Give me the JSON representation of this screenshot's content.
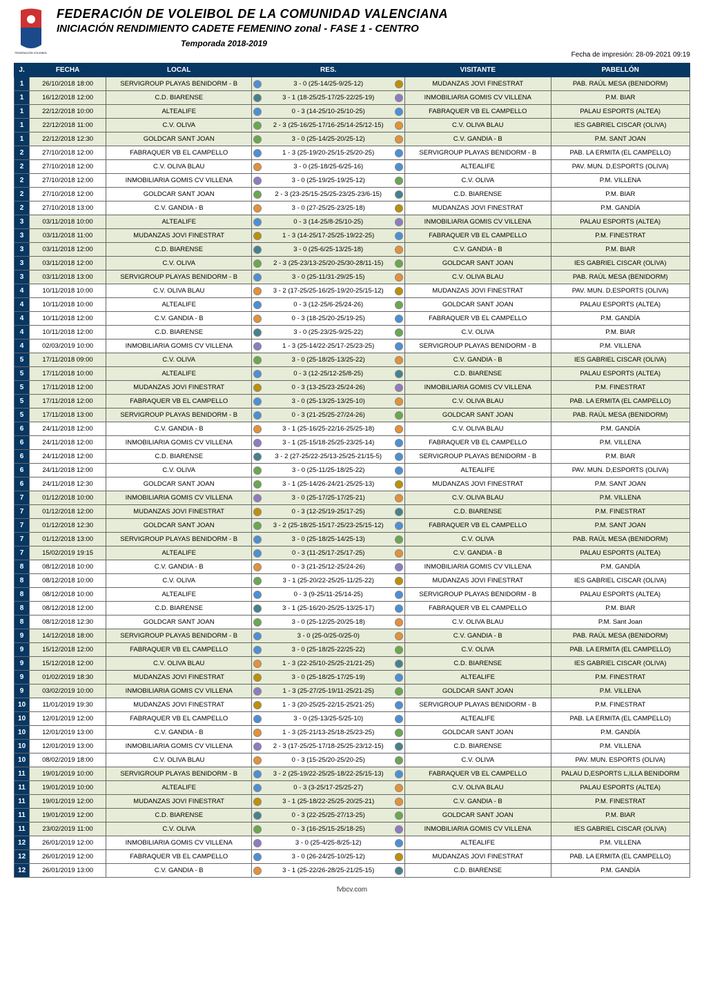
{
  "header": {
    "title_main": "FEDERACIÓN DE VOLEIBOL DE LA COMUNIDAD VALENCIANA",
    "title_sub": "INICIACIÓN RENDIMIENTO CADETE FEMENINO zonal - FASE 1 - CENTRO",
    "season": "Temporada 2018-2019",
    "print_date": "Fecha de impresión: 28-09-2021 09:19",
    "logo_text_top": "FEDERACIÓN VOLEIBOL",
    "logo_colors": {
      "red": "#cc3333",
      "blue": "#1a4a8a",
      "green": "#2a7a3a",
      "yellow": "#e6b800"
    }
  },
  "columns": {
    "j": "J.",
    "fecha": "FECHA",
    "local": "LOCAL",
    "res": "RES.",
    "visitante": "VISITANTE",
    "pabellon": "PABELLÓN"
  },
  "colors": {
    "header_bg": "#073763",
    "header_fg": "#ffffff",
    "row_even": "#e6ecd7",
    "row_odd": "#ffffff",
    "border": "#666666"
  },
  "badge_palette": [
    "#f4c430",
    "#4a90d9",
    "#6aa84f",
    "#cc3333",
    "#e69138",
    "#8e7cc3",
    "#45818e",
    "#bf9000"
  ],
  "footer": "fvbcv.com",
  "rows": [
    {
      "j": 1,
      "fecha": "26/10/2018 18:00",
      "local": "SERVIGROUP PLAYAS BENIDORM - B",
      "res": "3 - 0  (25-14/25-9/25-12)",
      "visit": "MUDANZAS JOVI FINESTRAT",
      "pab": "PAB. RAÚL MESA (BENIDORM)"
    },
    {
      "j": 1,
      "fecha": "16/12/2018 12:00",
      "local": "C.D. BIARENSE",
      "res": "3 - 1  (18-25/25-17/25-22/25-19)",
      "visit": "INMOBILIARIA GOMIS CV VILLENA",
      "pab": "P.M. BIAR"
    },
    {
      "j": 1,
      "fecha": "22/12/2018 10:00",
      "local": "ALTEALIFE",
      "res": "0 - 3  (14-25/10-25/10-25)",
      "visit": "FABRAQUER VB EL CAMPELLO",
      "pab": "PALAU ESPORTS (ALTEA)"
    },
    {
      "j": 1,
      "fecha": "22/12/2018 11:00",
      "local": "C.V. OLIVA",
      "res": "2 - 3  (25-16/25-17/16-25/14-25/12-15)",
      "visit": "C.V. OLIVA BLAU",
      "pab": "IES GABRIEL CISCAR (OLIVA)"
    },
    {
      "j": 1,
      "fecha": "22/12/2018 12:30",
      "local": "GOLDCAR SANT JOAN",
      "res": "3 - 0  (25-14/25-20/25-12)",
      "visit": "C.V. GANDIA - B",
      "pab": "P.M. SANT JOAN"
    },
    {
      "j": 2,
      "fecha": "27/10/2018 12:00",
      "local": "FABRAQUER VB EL CAMPELLO",
      "res": "1 - 3  (25-19/20-25/15-25/20-25)",
      "visit": "SERVIGROUP PLAYAS BENIDORM - B",
      "pab": "PAB. LA ERMITA (EL CAMPELLO)"
    },
    {
      "j": 2,
      "fecha": "27/10/2018 12:00",
      "local": "C.V. OLIVA BLAU",
      "res": "3 - 0  (25-18/25-6/25-16)",
      "visit": "ALTEALIFE",
      "pab": "PAV. MUN. D,ESPORTS (OLIVA)"
    },
    {
      "j": 2,
      "fecha": "27/10/2018 12:00",
      "local": "INMOBILIARIA GOMIS CV VILLENA",
      "res": "3 - 0  (25-19/25-19/25-12)",
      "visit": "C.V. OLIVA",
      "pab": "P.M. VILLENA"
    },
    {
      "j": 2,
      "fecha": "27/10/2018 12:00",
      "local": "GOLDCAR SANT JOAN",
      "res": "2 - 3  (23-25/15-25/25-23/25-23/6-15)",
      "visit": "C.D. BIARENSE",
      "pab": "P.M. BIAR"
    },
    {
      "j": 2,
      "fecha": "27/10/2018 13:00",
      "local": "C.V. GANDIA - B",
      "res": "3 - 0  (27-25/25-23/25-18)",
      "visit": "MUDANZAS JOVI FINESTRAT",
      "pab": "P.M. GANDÍA"
    },
    {
      "j": 3,
      "fecha": "03/11/2018 10:00",
      "local": "ALTEALIFE",
      "res": "0 - 3  (14-25/8-25/10-25)",
      "visit": "INMOBILIARIA GOMIS CV VILLENA",
      "pab": "PALAU ESPORTS (ALTEA)"
    },
    {
      "j": 3,
      "fecha": "03/11/2018 11:00",
      "local": "MUDANZAS JOVI FINESTRAT",
      "res": "1 - 3  (14-25/17-25/25-19/22-25)",
      "visit": "FABRAQUER VB EL CAMPELLO",
      "pab": "P.M. FINESTRAT"
    },
    {
      "j": 3,
      "fecha": "03/11/2018 12:00",
      "local": "C.D. BIARENSE",
      "res": "3 - 0  (25-6/25-13/25-18)",
      "visit": "C.V. GANDIA - B",
      "pab": "P.M. BIAR"
    },
    {
      "j": 3,
      "fecha": "03/11/2018 12:00",
      "local": "C.V. OLIVA",
      "res": "2 - 3  (25-23/13-25/20-25/30-28/11-15)",
      "visit": "GOLDCAR SANT JOAN",
      "pab": "IES GABRIEL CISCAR (OLIVA)"
    },
    {
      "j": 3,
      "fecha": "03/11/2018 13:00",
      "local": "SERVIGROUP PLAYAS BENIDORM - B",
      "res": "3 - 0  (25-11/31-29/25-15)",
      "visit": "C.V. OLIVA BLAU",
      "pab": "PAB. RAÚL MESA (BENIDORM)"
    },
    {
      "j": 4,
      "fecha": "10/11/2018 10:00",
      "local": "C.V. OLIVA BLAU",
      "res": "3 - 2  (17-25/25-16/25-19/20-25/15-12)",
      "visit": "MUDANZAS JOVI FINESTRAT",
      "pab": "PAV. MUN. D,ESPORTS (OLIVA)"
    },
    {
      "j": 4,
      "fecha": "10/11/2018 10:00",
      "local": "ALTEALIFE",
      "res": "0 - 3  (12-25/6-25/24-26)",
      "visit": "GOLDCAR SANT JOAN",
      "pab": "PALAU ESPORTS (ALTEA)"
    },
    {
      "j": 4,
      "fecha": "10/11/2018 12:00",
      "local": "C.V. GANDIA - B",
      "res": "0 - 3  (18-25/20-25/19-25)",
      "visit": "FABRAQUER VB EL CAMPELLO",
      "pab": "P.M. GANDÍA"
    },
    {
      "j": 4,
      "fecha": "10/11/2018 12:00",
      "local": "C.D. BIARENSE",
      "res": "3 - 0  (25-23/25-9/25-22)",
      "visit": "C.V. OLIVA",
      "pab": "P.M. BIAR"
    },
    {
      "j": 4,
      "fecha": "02/03/2019 10:00",
      "local": "INMOBILIARIA GOMIS CV VILLENA",
      "res": "1 - 3  (25-14/22-25/17-25/23-25)",
      "visit": "SERVIGROUP PLAYAS BENIDORM - B",
      "pab": "P.M. VILLENA"
    },
    {
      "j": 5,
      "fecha": "17/11/2018 09:00",
      "local": "C.V. OLIVA",
      "res": "3 - 0  (25-18/25-13/25-22)",
      "visit": "C.V. GANDIA - B",
      "pab": "IES GABRIEL CISCAR (OLIVA)"
    },
    {
      "j": 5,
      "fecha": "17/11/2018 10:00",
      "local": "ALTEALIFE",
      "res": "0 - 3  (12-25/12-25/8-25)",
      "visit": "C.D. BIARENSE",
      "pab": "PALAU ESPORTS (ALTEA)"
    },
    {
      "j": 5,
      "fecha": "17/11/2018 12:00",
      "local": "MUDANZAS JOVI FINESTRAT",
      "res": "0 - 3  (13-25/23-25/24-26)",
      "visit": "INMOBILIARIA GOMIS CV VILLENA",
      "pab": "P.M. FINESTRAT"
    },
    {
      "j": 5,
      "fecha": "17/11/2018 12:00",
      "local": "FABRAQUER VB EL CAMPELLO",
      "res": "3 - 0  (25-13/25-13/25-10)",
      "visit": "C.V. OLIVA BLAU",
      "pab": "PAB. LA ERMITA (EL CAMPELLO)"
    },
    {
      "j": 5,
      "fecha": "17/11/2018 13:00",
      "local": "SERVIGROUP PLAYAS BENIDORM - B",
      "res": "0 - 3  (21-25/25-27/24-26)",
      "visit": "GOLDCAR SANT JOAN",
      "pab": "PAB. RAÚL MESA (BENIDORM)"
    },
    {
      "j": 6,
      "fecha": "24/11/2018 12:00",
      "local": "C.V. GANDIA - B",
      "res": "3 - 1  (25-16/25-22/16-25/25-18)",
      "visit": "C.V. OLIVA BLAU",
      "pab": "P.M. GANDÍA"
    },
    {
      "j": 6,
      "fecha": "24/11/2018 12:00",
      "local": "INMOBILIARIA GOMIS CV VILLENA",
      "res": "3 - 1  (25-15/18-25/25-23/25-14)",
      "visit": "FABRAQUER VB EL CAMPELLO",
      "pab": "P.M. VILLENA"
    },
    {
      "j": 6,
      "fecha": "24/11/2018 12:00",
      "local": "C.D. BIARENSE",
      "res": "3 - 2  (27-25/22-25/13-25/25-21/15-5)",
      "visit": "SERVIGROUP PLAYAS BENIDORM - B",
      "pab": "P.M. BIAR"
    },
    {
      "j": 6,
      "fecha": "24/11/2018 12:00",
      "local": "C.V. OLIVA",
      "res": "3 - 0  (25-11/25-18/25-22)",
      "visit": "ALTEALIFE",
      "pab": "PAV. MUN. D,ESPORTS (OLIVA)"
    },
    {
      "j": 6,
      "fecha": "24/11/2018 12:30",
      "local": "GOLDCAR SANT JOAN",
      "res": "3 - 1  (25-14/26-24/21-25/25-13)",
      "visit": "MUDANZAS JOVI FINESTRAT",
      "pab": "P.M. SANT JOAN"
    },
    {
      "j": 7,
      "fecha": "01/12/2018 10:00",
      "local": "INMOBILIARIA GOMIS CV VILLENA",
      "res": "3 - 0  (25-17/25-17/25-21)",
      "visit": "C.V. OLIVA BLAU",
      "pab": "P.M. VILLENA"
    },
    {
      "j": 7,
      "fecha": "01/12/2018 12:00",
      "local": "MUDANZAS JOVI FINESTRAT",
      "res": "0 - 3  (12-25/19-25/17-25)",
      "visit": "C.D. BIARENSE",
      "pab": "P.M. FINESTRAT"
    },
    {
      "j": 7,
      "fecha": "01/12/2018 12:30",
      "local": "GOLDCAR SANT JOAN",
      "res": "3 - 2  (25-18/25-15/17-25/23-25/15-12)",
      "visit": "FABRAQUER VB EL CAMPELLO",
      "pab": "P.M. SANT JOAN"
    },
    {
      "j": 7,
      "fecha": "01/12/2018 13:00",
      "local": "SERVIGROUP PLAYAS BENIDORM - B",
      "res": "3 - 0  (25-18/25-14/25-13)",
      "visit": "C.V. OLIVA",
      "pab": "PAB. RAÚL MESA (BENIDORM)"
    },
    {
      "j": 7,
      "fecha": "15/02/2019 19:15",
      "local": "ALTEALIFE",
      "res": "0 - 3  (11-25/17-25/17-25)",
      "visit": "C.V. GANDIA - B",
      "pab": "PALAU ESPORTS (ALTEA)"
    },
    {
      "j": 8,
      "fecha": "08/12/2018 10:00",
      "local": "C.V. GANDIA - B",
      "res": "0 - 3  (21-25/12-25/24-26)",
      "visit": "INMOBILIARIA GOMIS CV VILLENA",
      "pab": "P.M. GANDÍA"
    },
    {
      "j": 8,
      "fecha": "08/12/2018 10:00",
      "local": "C.V. OLIVA",
      "res": "3 - 1  (25-20/22-25/25-11/25-22)",
      "visit": "MUDANZAS JOVI FINESTRAT",
      "pab": "IES GABRIEL CISCAR (OLIVA)"
    },
    {
      "j": 8,
      "fecha": "08/12/2018 10:00",
      "local": "ALTEALIFE",
      "res": "0 - 3  (9-25/11-25/14-25)",
      "visit": "SERVIGROUP PLAYAS BENIDORM - B",
      "pab": "PALAU ESPORTS (ALTEA)"
    },
    {
      "j": 8,
      "fecha": "08/12/2018 12:00",
      "local": "C.D. BIARENSE",
      "res": "3 - 1  (25-16/20-25/25-13/25-17)",
      "visit": "FABRAQUER VB EL CAMPELLO",
      "pab": "P.M. BIAR"
    },
    {
      "j": 8,
      "fecha": "08/12/2018 12:30",
      "local": "GOLDCAR SANT JOAN",
      "res": "3 - 0  (25-12/25-20/25-18)",
      "visit": "C.V. OLIVA BLAU",
      "pab": "P.M. Sant Joan"
    },
    {
      "j": 9,
      "fecha": "14/12/2018 18:00",
      "local": "SERVIGROUP PLAYAS BENIDORM - B",
      "res": "3 - 0  (25-0/25-0/25-0)",
      "visit": "C.V. GANDIA - B",
      "pab": "PAB. RAÚL MESA (BENIDORM)"
    },
    {
      "j": 9,
      "fecha": "15/12/2018 12:00",
      "local": "FABRAQUER VB EL CAMPELLO",
      "res": "3 - 0  (25-18/25-22/25-22)",
      "visit": "C.V. OLIVA",
      "pab": "PAB. LA ERMITA (EL CAMPELLO)"
    },
    {
      "j": 9,
      "fecha": "15/12/2018 12:00",
      "local": "C.V. OLIVA BLAU",
      "res": "1 - 3  (22-25/10-25/25-21/21-25)",
      "visit": "C.D. BIARENSE",
      "pab": "IES GABRIEL CISCAR (OLIVA)"
    },
    {
      "j": 9,
      "fecha": "01/02/2019 18:30",
      "local": "MUDANZAS JOVI FINESTRAT",
      "res": "3 - 0  (25-18/25-17/25-19)",
      "visit": "ALTEALIFE",
      "pab": "P.M. FINESTRAT"
    },
    {
      "j": 9,
      "fecha": "03/02/2019 10:00",
      "local": "INMOBILIARIA GOMIS CV VILLENA",
      "res": "1 - 3  (25-27/25-19/11-25/21-25)",
      "visit": "GOLDCAR SANT JOAN",
      "pab": "P.M. VILLENA"
    },
    {
      "j": 10,
      "fecha": "11/01/2019 19:30",
      "local": "MUDANZAS JOVI FINESTRAT",
      "res": "1 - 3  (20-25/25-22/15-25/21-25)",
      "visit": "SERVIGROUP PLAYAS BENIDORM - B",
      "pab": "P.M. FINESTRAT"
    },
    {
      "j": 10,
      "fecha": "12/01/2019 12:00",
      "local": "FABRAQUER VB EL CAMPELLO",
      "res": "3 - 0  (25-13/25-5/25-10)",
      "visit": "ALTEALIFE",
      "pab": "PAB. LA ERMITA (EL CAMPELLO)"
    },
    {
      "j": 10,
      "fecha": "12/01/2019 13:00",
      "local": "C.V. GANDIA - B",
      "res": "1 - 3  (25-21/13-25/18-25/23-25)",
      "visit": "GOLDCAR SANT JOAN",
      "pab": "P.M. GANDÍA"
    },
    {
      "j": 10,
      "fecha": "12/01/2019 13:00",
      "local": "INMOBILIARIA GOMIS CV VILLENA",
      "res": "2 - 3  (17-25/25-17/18-25/25-23/12-15)",
      "visit": "C.D. BIARENSE",
      "pab": "P.M. VILLENA"
    },
    {
      "j": 10,
      "fecha": "08/02/2019 18:00",
      "local": "C.V. OLIVA BLAU",
      "res": "0 - 3  (15-25/20-25/20-25)",
      "visit": "C.V. OLIVA",
      "pab": "PAV. MUN. ESPORTS (OLIVA)"
    },
    {
      "j": 11,
      "fecha": "19/01/2019 10:00",
      "local": "SERVIGROUP PLAYAS BENIDORM - B",
      "res": "3 - 2  (25-19/22-25/25-18/22-25/15-13)",
      "visit": "FABRAQUER VB EL CAMPELLO",
      "pab": "PALAU D,ESPORTS L,ILLA BENIDORM"
    },
    {
      "j": 11,
      "fecha": "19/01/2019 10:00",
      "local": "ALTEALIFE",
      "res": "0 - 3  (3-25/17-25/25-27)",
      "visit": "C.V. OLIVA BLAU",
      "pab": "PALAU ESPORTS (ALTEA)"
    },
    {
      "j": 11,
      "fecha": "19/01/2019 12:00",
      "local": "MUDANZAS JOVI FINESTRAT",
      "res": "3 - 1  (25-18/22-25/25-20/25-21)",
      "visit": "C.V. GANDIA - B",
      "pab": "P.M. FINESTRAT"
    },
    {
      "j": 11,
      "fecha": "19/01/2019 12:00",
      "local": "C.D. BIARENSE",
      "res": "0 - 3  (22-25/25-27/13-25)",
      "visit": "GOLDCAR SANT JOAN",
      "pab": "P.M. BIAR"
    },
    {
      "j": 11,
      "fecha": "23/02/2019 11:00",
      "local": "C.V. OLIVA",
      "res": "0 - 3  (16-25/15-25/18-25)",
      "visit": "INMOBILIARIA GOMIS CV VILLENA",
      "pab": "IES GABRIEL CISCAR (OLIVA)"
    },
    {
      "j": 12,
      "fecha": "26/01/2019 12:00",
      "local": "INMOBILIARIA GOMIS CV VILLENA",
      "res": "3 - 0  (25-4/25-8/25-12)",
      "visit": "ALTEALIFE",
      "pab": "P.M. VILLENA"
    },
    {
      "j": 12,
      "fecha": "26/01/2019 12:00",
      "local": "FABRAQUER VB EL CAMPELLO",
      "res": "3 - 0  (26-24/25-10/25-12)",
      "visit": "MUDANZAS JOVI FINESTRAT",
      "pab": "PAB. LA ERMITA (EL CAMPELLO)"
    },
    {
      "j": 12,
      "fecha": "26/01/2019 13:00",
      "local": "C.V. GANDIA - B",
      "res": "3 - 1  (25-22/26-28/25-21/25-15)",
      "visit": "C.D. BIARENSE",
      "pab": "P.M. GANDÍA"
    }
  ]
}
